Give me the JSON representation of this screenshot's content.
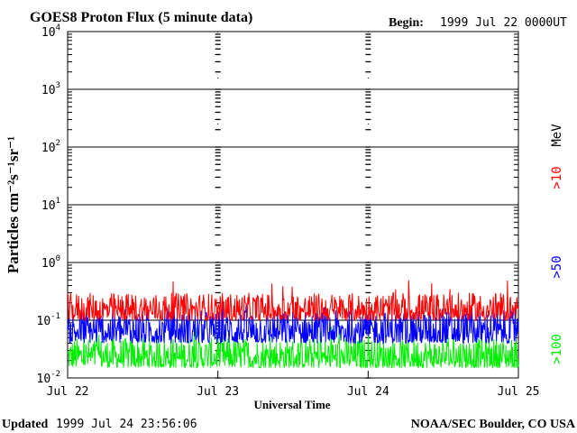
{
  "header": {
    "title": "GOES8 Proton Flux (5 minute data)",
    "begin_label": "Begin:",
    "begin_value": "1999 Jul 22 0000UT"
  },
  "footer": {
    "updated_label": "Updated",
    "updated_value": "1999 Jul 24 23:56:06",
    "credit": "NOAA/SEC Boulder, CO USA"
  },
  "legend": {
    "unit": "MeV",
    "items": [
      {
        "label": ">10",
        "color": "#ff0000"
      },
      {
        "label": ">50",
        "color": "#0000ff"
      },
      {
        "label": ">100",
        "color": "#00ee00"
      }
    ]
  },
  "chart_data": {
    "type": "line",
    "title": "GOES8 Proton Flux (5 minute data)",
    "xlabel": "Universal Time",
    "ylabel": "Particles cm⁻²s⁻¹sr⁻¹",
    "y_scale": "log",
    "ylim": [
      0.01,
      10000
    ],
    "y_ticks": [
      {
        "value": 0.01,
        "base": "10",
        "exp": "-2"
      },
      {
        "value": 0.1,
        "base": "10",
        "exp": "-1"
      },
      {
        "value": 1,
        "base": "10",
        "exp": "0"
      },
      {
        "value": 10,
        "base": "10",
        "exp": "1"
      },
      {
        "value": 100,
        "base": "10",
        "exp": "2"
      },
      {
        "value": 1000,
        "base": "10",
        "exp": "3"
      },
      {
        "value": 10000,
        "base": "10",
        "exp": "4"
      }
    ],
    "x_ticks": [
      "Jul 22",
      "Jul 23",
      "Jul 24",
      "Jul 25"
    ],
    "grid": true,
    "sample_interval_min": 5,
    "series": [
      {
        "name": ">10",
        "color": "#ff0000",
        "typical_min": 0.1,
        "typical_max": 0.3,
        "peak": 0.5
      },
      {
        "name": ">50",
        "color": "#0000ff",
        "typical_min": 0.04,
        "typical_max": 0.15,
        "peak": 0.2
      },
      {
        "name": ">100",
        "color": "#00ee00",
        "typical_min": 0.015,
        "typical_max": 0.05,
        "peak": 0.08
      }
    ]
  }
}
